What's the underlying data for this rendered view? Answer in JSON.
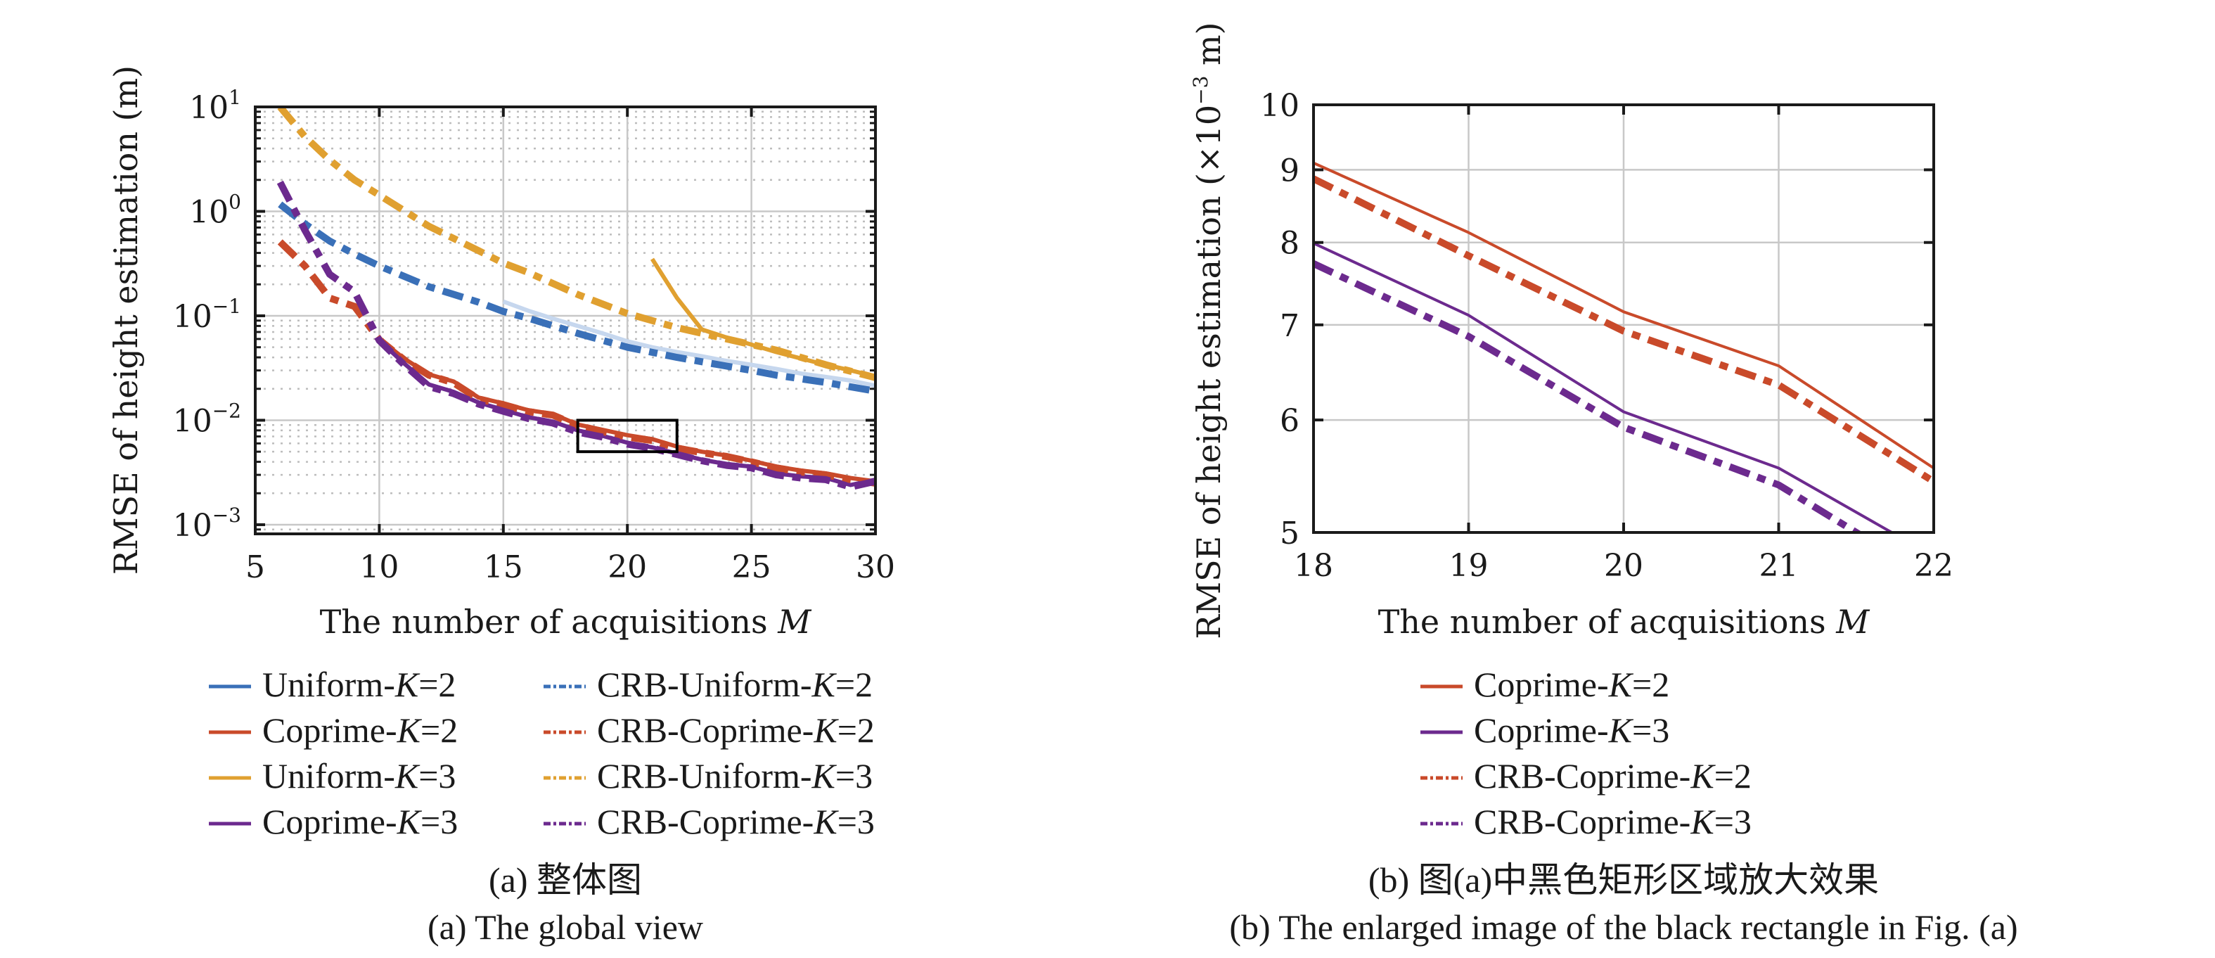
{
  "colors": {
    "uniform_k2": "#3a70b8",
    "uniform_k2_light": "#c6d7ee",
    "coprime_k2": "#c94a2a",
    "uniform_k3": "#e0a030",
    "coprime_k3": "#6c2a8e",
    "grid_major": "#c8c8c8",
    "grid_minor": "#bdbdbd",
    "axis": "#1a1a1a"
  },
  "chart_data": [
    {
      "type": "line",
      "id": "global_view",
      "title": "",
      "xlabel": "The number of acquisitions M",
      "ylabel": "RMSE of height estimation (m)",
      "xscale": "linear",
      "yscale": "log",
      "xlim": [
        5,
        30
      ],
      "ylim": [
        0.000817,
        10
      ],
      "xticks": [
        5,
        10,
        15,
        20,
        25,
        30
      ],
      "xtick_labels": [
        "5",
        "10",
        "15",
        "20",
        "25",
        "30"
      ],
      "yticks": [
        10,
        1,
        0.1,
        0.01,
        0.001
      ],
      "ytick_labels": [
        {
          "base": "10",
          "exp": "1"
        },
        {
          "base": "10",
          "exp": "0"
        },
        {
          "base": "10",
          "exp": "−1"
        },
        {
          "base": "10",
          "exp": "−2"
        },
        {
          "base": "10",
          "exp": "−3"
        }
      ],
      "grid": true,
      "minor_grid": true,
      "annotation": {
        "type": "rectangle",
        "x_range": [
          18,
          22
        ],
        "y_range": [
          0.005,
          0.01
        ],
        "color": "#000000"
      },
      "legend_position": "below",
      "legend_columns": 2,
      "series": [
        {
          "name": "Uniform-K=2",
          "label_prefix": "Uniform-",
          "label_k": "2",
          "color_key": "uniform_k2_light",
          "legend_color_key": "uniform_k2",
          "style": "solid",
          "x": [
            15,
            16,
            17,
            18,
            19,
            20,
            21,
            22,
            23,
            24,
            25,
            26,
            27,
            28,
            29,
            30
          ],
          "y": [
            0.137,
            0.112,
            0.094,
            0.08,
            0.068,
            0.057,
            0.05,
            0.045,
            0.041,
            0.037,
            0.034,
            0.031,
            0.028,
            0.026,
            0.024,
            0.0214
          ]
        },
        {
          "name": "Coprime-K=2",
          "label_prefix": "Coprime-",
          "label_k": "2",
          "color_key": "coprime_k2",
          "legend_color_key": "coprime_k2",
          "style": "solid",
          "x": [
            10,
            11,
            12,
            13,
            14,
            15,
            16,
            17,
            18,
            19,
            20,
            21,
            22,
            23,
            24,
            25,
            26,
            27,
            28,
            29,
            30
          ],
          "y": [
            0.06,
            0.039,
            0.0275,
            0.0235,
            0.0165,
            0.0145,
            0.0125,
            0.0115,
            0.0091,
            0.0081,
            0.0072,
            0.0066,
            0.0056,
            0.005,
            0.0046,
            0.0041,
            0.0036,
            0.0033,
            0.0031,
            0.0028,
            0.0026
          ]
        },
        {
          "name": "Uniform-K=3",
          "label_prefix": "Uniform-",
          "label_k": "3",
          "color_key": "uniform_k3",
          "legend_color_key": "uniform_k3",
          "style": "solid",
          "x": [
            21,
            22,
            23,
            24,
            25,
            26,
            27,
            28,
            29,
            30
          ],
          "y": [
            0.35,
            0.148,
            0.074,
            0.062,
            0.053,
            0.045,
            0.039,
            0.034,
            0.03,
            0.0262
          ]
        },
        {
          "name": "Coprime-K=3",
          "label_prefix": "Coprime-",
          "label_k": "3",
          "color_key": "coprime_k3",
          "legend_color_key": "coprime_k3",
          "style": "solid",
          "x": [
            10,
            11,
            12,
            13,
            14,
            15,
            16,
            17,
            18,
            19,
            20,
            21,
            22,
            23,
            24,
            25,
            26,
            27,
            28,
            29,
            30
          ],
          "y": [
            0.058,
            0.035,
            0.022,
            0.0187,
            0.0148,
            0.0126,
            0.0107,
            0.0097,
            0.008,
            0.0071,
            0.0061,
            0.0055,
            0.0048,
            0.0042,
            0.0038,
            0.0036,
            0.0031,
            0.0029,
            0.0028,
            0.0024,
            0.0027
          ]
        },
        {
          "name": "CRB-Uniform-K=2",
          "label_prefix": "CRB-Uniform-",
          "label_k": "2",
          "color_key": "uniform_k2",
          "legend_color_key": "uniform_k2",
          "style": "dashdot",
          "x": [
            6,
            7,
            8,
            9,
            10,
            12,
            14,
            15,
            16,
            18,
            20,
            22,
            24,
            25,
            26,
            28,
            30
          ],
          "y": [
            1.17,
            0.76,
            0.52,
            0.39,
            0.3,
            0.19,
            0.135,
            0.11,
            0.095,
            0.068,
            0.05,
            0.04,
            0.033,
            0.03,
            0.027,
            0.023,
            0.019
          ]
        },
        {
          "name": "CRB-Coprime-K=2",
          "label_prefix": "CRB-Coprime-",
          "label_k": "2",
          "color_key": "coprime_k2",
          "legend_color_key": "coprime_k2",
          "style": "dashdot",
          "x": [
            6,
            7,
            8,
            9,
            10,
            11,
            12,
            13,
            14,
            15,
            16,
            17,
            18,
            19,
            20,
            21,
            22,
            23,
            24,
            25,
            26,
            27,
            28,
            29,
            30
          ],
          "y": [
            0.51,
            0.3,
            0.148,
            0.123,
            0.059,
            0.038,
            0.027,
            0.0228,
            0.016,
            0.0141,
            0.0121,
            0.0112,
            0.0089,
            0.0078,
            0.0069,
            0.0064,
            0.0054,
            0.0049,
            0.0045,
            0.004,
            0.0035,
            0.0032,
            0.003,
            0.0027,
            0.0025
          ]
        },
        {
          "name": "CRB-Uniform-K=3",
          "label_prefix": "CRB-Uniform-",
          "label_k": "3",
          "color_key": "uniform_k3",
          "legend_color_key": "uniform_k3",
          "style": "dashdot",
          "x": [
            6,
            7,
            8,
            9,
            10,
            12,
            14,
            15,
            16,
            18,
            20,
            22,
            24,
            25,
            26,
            28,
            30
          ],
          "y": [
            10.0,
            5.2,
            3.1,
            2.0,
            1.43,
            0.72,
            0.42,
            0.32,
            0.26,
            0.16,
            0.105,
            0.077,
            0.06,
            0.053,
            0.047,
            0.034,
            0.0256
          ]
        },
        {
          "name": "CRB-Coprime-K=3",
          "label_prefix": "CRB-Coprime-",
          "label_k": "3",
          "color_key": "coprime_k3",
          "legend_color_key": "coprime_k3",
          "style": "dashdot",
          "x": [
            6,
            7,
            8,
            9,
            10,
            11,
            12,
            13,
            14,
            15,
            16,
            17,
            18,
            19,
            20,
            21,
            22,
            23,
            24,
            25,
            26,
            27,
            28,
            29,
            30
          ],
          "y": [
            1.9,
            0.66,
            0.25,
            0.17,
            0.058,
            0.034,
            0.021,
            0.018,
            0.0143,
            0.0122,
            0.0104,
            0.0094,
            0.0077,
            0.0069,
            0.0059,
            0.0054,
            0.0047,
            0.0041,
            0.0037,
            0.0035,
            0.003,
            0.0028,
            0.0027,
            0.0023,
            0.0026
          ]
        }
      ]
    },
    {
      "type": "line",
      "id": "enlarged_view",
      "title": "",
      "xlabel": "The number of acquisitions M",
      "ylabel": "RMSE of height estimation (×10⁻³ m)",
      "xscale": "linear",
      "yscale": "log",
      "xlim": [
        18,
        22
      ],
      "ylim": [
        5,
        10
      ],
      "xticks": [
        18,
        19,
        20,
        21,
        22
      ],
      "xtick_labels": [
        "18",
        "19",
        "20",
        "21",
        "22"
      ],
      "yticks": [
        5,
        6,
        7,
        8,
        9,
        10
      ],
      "ytick_labels": [
        "5",
        "6",
        "7",
        "8",
        "9",
        "10"
      ],
      "grid": true,
      "minor_grid": true,
      "legend_position": "below",
      "legend_columns": 1,
      "series": [
        {
          "name": "Coprime-K=2",
          "label_prefix": "Coprime-",
          "label_k": "2",
          "color_key": "coprime_k2",
          "style": "solid",
          "x": [
            18,
            19,
            20,
            21,
            22
          ],
          "y": [
            9.1,
            8.13,
            7.15,
            6.55,
            5.55
          ]
        },
        {
          "name": "Coprime-K=3",
          "label_prefix": "Coprime-",
          "label_k": "3",
          "color_key": "coprime_k3",
          "style": "solid",
          "x": [
            18,
            19,
            20,
            21,
            22
          ],
          "y": [
            7.99,
            7.11,
            6.08,
            5.55,
            4.81
          ]
        },
        {
          "name": "CRB-Coprime-K=2",
          "label_prefix": "CRB-Coprime-",
          "label_k": "2",
          "color_key": "coprime_k2",
          "style": "dashdot",
          "x": [
            18,
            19,
            20,
            21,
            22
          ],
          "y": [
            8.87,
            7.83,
            6.93,
            6.35,
            5.43
          ]
        },
        {
          "name": "CRB-Coprime-K=3",
          "label_prefix": "CRB-Coprime-",
          "label_k": "3",
          "color_key": "coprime_k3",
          "style": "dashdot",
          "x": [
            18,
            19,
            20,
            21,
            22
          ],
          "y": [
            7.73,
            6.87,
            5.93,
            5.4,
            4.63
          ]
        }
      ]
    }
  ],
  "captions": {
    "a_cn": "(a) 整体图",
    "a_en": "(a) The global view",
    "b_cn": "(b) 图(a)中黑色矩形区域放大效果",
    "b_en": "(b) The enlarged image of the black rectangle in Fig. (a)"
  },
  "axis_text": {
    "left_ylabel": "RMSE of height estimation (m)",
    "right_ylabel_prefix": "RMSE of height estimation (×10",
    "right_ylabel_exp": "−3",
    "right_ylabel_suffix": " m)",
    "xlabel_prefix": "The number of acquisitions ",
    "xlabel_var": "M"
  }
}
